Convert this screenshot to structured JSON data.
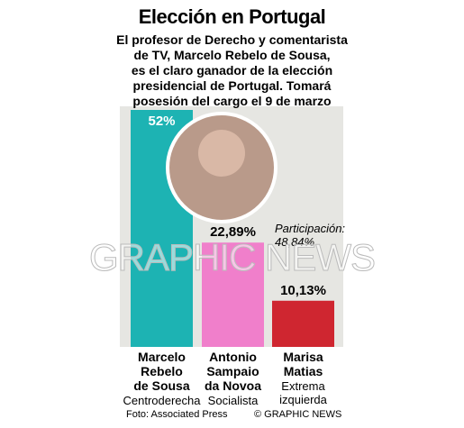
{
  "title": "Elección en Portugal",
  "subtitle": [
    "El profesor de Derecho y comentarista",
    "de TV, Marcelo Rebelo de Sousa,",
    "es el claro ganador de la elección",
    "presidencial de Portugal. Tomará",
    "posesión del cargo el 9 de marzo"
  ],
  "chart_data": {
    "type": "bar",
    "categories": [
      "Marcelo\nRebelo\nde Sousa",
      "Antonio\nSampaio\nda Novoa",
      "Marisa\nMatias"
    ],
    "groups": [
      "Centroderecha",
      "Socialista",
      "Extrema\nizquierda"
    ],
    "values": [
      52,
      22.89,
      10.13
    ],
    "value_labels": [
      "52%",
      "22,89%",
      "10,13%"
    ],
    "colors": [
      "#1db3b3",
      "#f07fcb",
      "#cf2630"
    ],
    "annotation": "Participación:\n48,84%"
  },
  "watermark": "GRAPHIC NEWS",
  "credit": "Foto: Associated Press",
  "copyright": "© GRAPHIC NEWS"
}
